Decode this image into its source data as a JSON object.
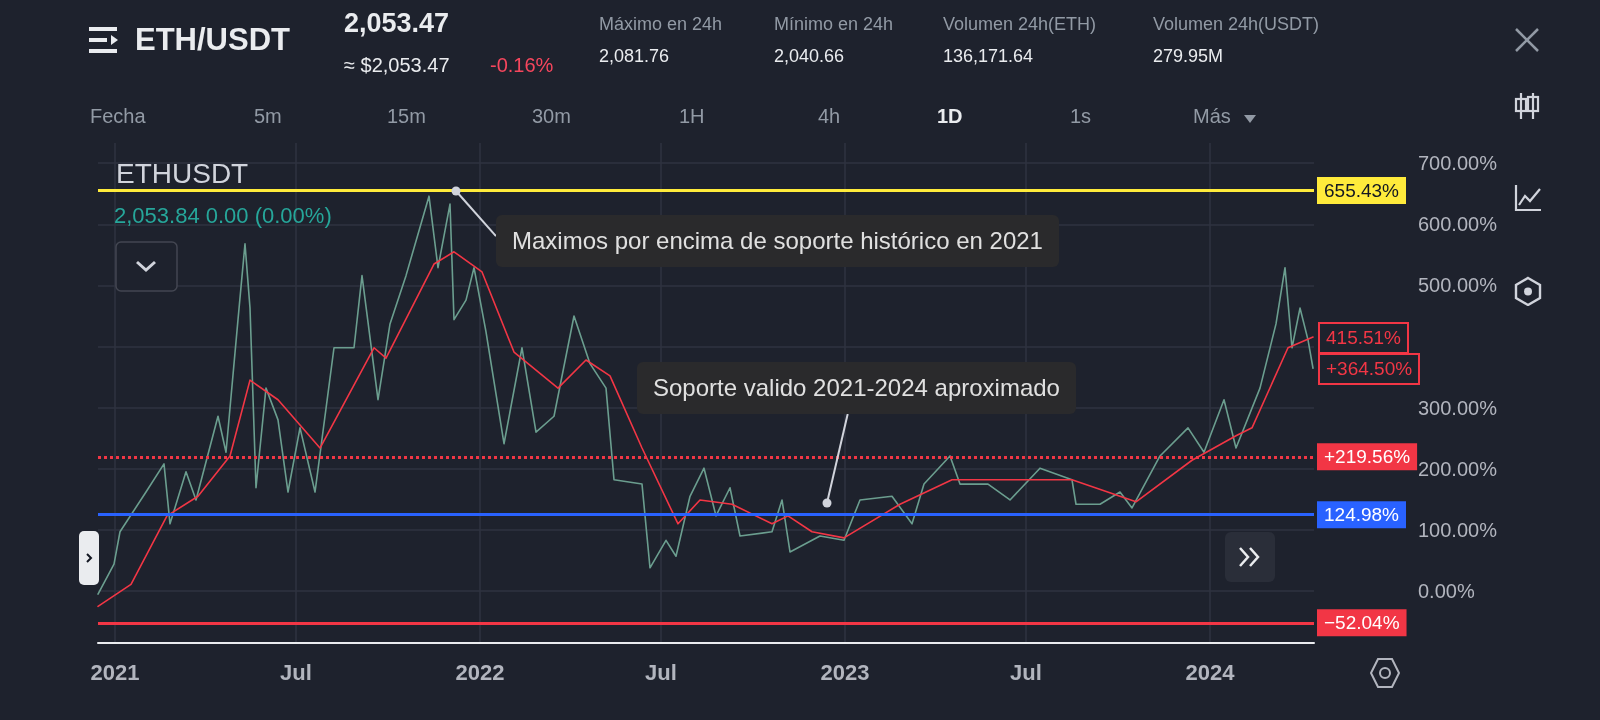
{
  "chart_data": {
    "type": "line",
    "title": "ETH/USDT",
    "subtitle": "2,053.47",
    "annotations": [
      "≈ $2,053.47",
      "-0.16%",
      "Máximo en 24h",
      "2,081.76",
      "Mínimo en 24h",
      "2,040.66",
      "Volumen 24h(ETH)",
      "136,171.64",
      "Volumen 24h(USDT)",
      "279.95M",
      "Fecha",
      "5m",
      "15m",
      "30m",
      "1H",
      "4h",
      "1D",
      "1s",
      "Más",
      "ETHUSDT",
      "2,053.84  0.00 (0.00%)",
      {
        "text": "Maximos por encima de soporte histórico en 2021",
        "x": "2021-12-08",
        "y": 655
      },
      {
        "text": "Soporte valido 2021-2024 aproximado",
        "x": "2022-12-14",
        "y": 144
      },
      {
        "text": "415.51%",
        "x": "2024-04-13",
        "y": 415.51
      },
      {
        "text": "+364.50%",
        "x": "2024-04-13",
        "y": 364.5
      }
    ],
    "series": [
      {
        "color": "#6b9e8f",
        "x": [
          "2020-12-15",
          "2020-12-31",
          "2021-01-06",
          "2021-02-01",
          "2021-02-19",
          "2021-02-25",
          "2021-03-13",
          "2021-03-23",
          "2021-04-14",
          "2021-04-22",
          "2021-05-04",
          "2021-05-11",
          "2021-05-16",
          "2021-05-22",
          "2021-06-01",
          "2021-06-13",
          "2021-06-23",
          "2021-07-05",
          "2021-07-20",
          "2021-08-08",
          "2021-08-28",
          "2021-09-05",
          "2021-09-21",
          "2021-10-03",
          "2021-10-19",
          "2021-11-11",
          "2021-11-20",
          "2021-12-02",
          "2021-12-06",
          "2021-12-18",
          "2021-12-26",
          "2022-01-07",
          "2022-01-25",
          "2022-02-12",
          "2022-02-26",
          "2022-03-16",
          "2022-04-05",
          "2022-04-21",
          "2022-05-07",
          "2022-05-15",
          "2022-06-12",
          "2022-06-20",
          "2022-07-06",
          "2022-07-16",
          "2022-07-30",
          "2022-08-13",
          "2022-08-25",
          "2022-09-08",
          "2022-09-18",
          "2022-10-20",
          "2022-10-30",
          "2022-11-07",
          "2022-12-07",
          "2022-12-31",
          "2023-01-16",
          "2023-02-17",
          "2023-03-09",
          "2023-03-21",
          "2023-04-16",
          "2023-04-26",
          "2023-05-24",
          "2023-06-15",
          "2023-07-15",
          "2023-08-16",
          "2023-08-20",
          "2023-09-13",
          "2023-10-03",
          "2023-10-15",
          "2023-11-12",
          "2023-12-10",
          "2023-12-26",
          "2024-01-15",
          "2024-01-27",
          "2024-02-20",
          "2024-03-07",
          "2024-03-16",
          "2024-03-23",
          "2024-03-31",
          "2024-04-08",
          "2024-04-13"
        ],
        "values": [
          -5,
          44,
          97,
          162,
          208,
          110,
          195,
          149,
          286,
          227,
          444,
          568,
          463,
          169,
          332,
          280,
          162,
          267,
          162,
          398,
          398,
          516,
          313,
          437,
          516,
          646,
          529,
          633,
          444,
          476,
          529,
          424,
          241,
          398,
          260,
          286,
          450,
          372,
          332,
          182,
          175,
          38,
          83,
          57,
          155,
          201,
          123,
          169,
          90,
          97,
          149,
          64,
          90,
          83,
          149,
          155,
          110,
          175,
          221,
          175,
          175,
          149,
          201,
          182,
          142,
          142,
          162,
          136,
          221,
          267,
          227,
          313,
          234,
          332,
          437,
          529,
          398,
          463,
          411,
          364.5
        ]
      },
      {
        "color": "#f23645",
        "x": [
          "2020-12-15",
          "2021-01-17",
          "2021-02-22",
          "2021-03-25",
          "2021-04-26",
          "2021-05-16",
          "2021-06-13",
          "2021-07-25",
          "2021-09-17",
          "2021-09-29",
          "2021-11-16",
          "2021-12-06",
          "2022-01-03",
          "2022-02-04",
          "2022-03-20",
          "2022-04-17",
          "2022-05-11",
          "2022-06-12",
          "2022-07-18",
          "2022-08-09",
          "2022-09-10",
          "2022-10-20",
          "2022-11-05",
          "2022-11-29",
          "2022-12-31",
          "2023-02-25",
          "2023-04-18",
          "2023-07-15",
          "2023-08-16",
          "2023-10-19",
          "2023-12-14",
          "2024-01-27",
          "2024-02-12",
          "2024-03-19",
          "2024-04-13"
        ],
        "values": [
          -25,
          11,
          123,
          155,
          221,
          345,
          313,
          234,
          398,
          381,
          535,
          555,
          522,
          391,
          332,
          378,
          352,
          234,
          110,
          149,
          142,
          110,
          123,
          97,
          87,
          142,
          182,
          182,
          182,
          146,
          214,
          254,
          267,
          398,
          415.51
        ]
      }
    ],
    "xlim": [
      "2020-12-15",
      "2024-04-14"
    ],
    "xticks": [
      {
        "value": "2021-01-01",
        "label": "2021"
      },
      {
        "value": "2021-07-01",
        "label": "Jul"
      },
      {
        "value": "2022-01-01",
        "label": "2022"
      },
      {
        "value": "2022-07-01",
        "label": "Jul"
      },
      {
        "value": "2023-01-01",
        "label": "2023"
      },
      {
        "value": "2023-07-01",
        "label": "Jul"
      },
      {
        "value": "2024-01-01",
        "label": "2024"
      }
    ],
    "ylim": [
      -85,
      733
    ],
    "yticks": [
      {
        "value": 0,
        "label": "0.00%"
      },
      {
        "value": 100,
        "label": "100.00%"
      },
      {
        "value": 200,
        "label": "200.00%"
      },
      {
        "value": 300,
        "label": "300.00%"
      },
      {
        "value": 400,
        "label": null
      },
      {
        "value": 500,
        "label": "500.00%"
      },
      {
        "value": 600,
        "label": "600.00%"
      },
      {
        "value": 700,
        "label": "700.00%"
      }
    ],
    "ref_lines": [
      {
        "axis": "y",
        "value": 655.43,
        "label": "655.43%",
        "color": "#ffeb3b",
        "line_style": "solid"
      },
      {
        "axis": "y",
        "value": 219.56,
        "label": "+219.56%",
        "color": "#f23645",
        "line_style": "dotted"
      },
      {
        "axis": "y",
        "value": 124.98,
        "label": "124.98%",
        "color": "#2962ff",
        "line_style": "solid"
      },
      {
        "axis": "y",
        "value": -52.04,
        "label": "−52.04%",
        "color": "#f23645",
        "line_style": "solid"
      }
    ],
    "grid": true
  }
}
